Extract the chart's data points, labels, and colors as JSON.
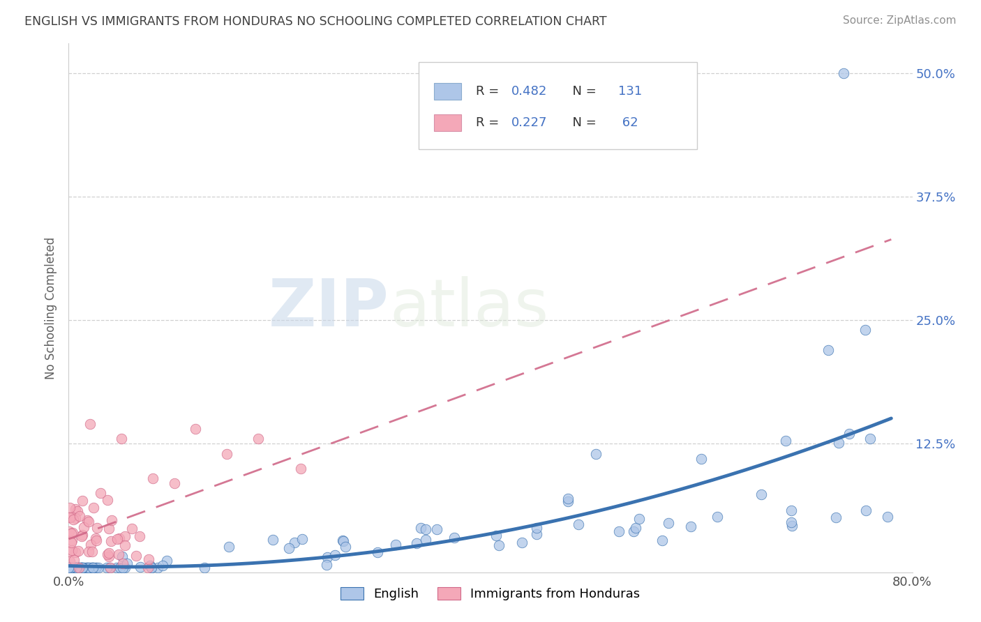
{
  "title": "ENGLISH VS IMMIGRANTS FROM HONDURAS NO SCHOOLING COMPLETED CORRELATION CHART",
  "source_text": "Source: ZipAtlas.com",
  "ylabel": "No Schooling Completed",
  "xmin": 0.0,
  "xmax": 0.8,
  "ymin": -0.005,
  "ymax": 0.53,
  "blue_color": "#aec6e8",
  "pink_color": "#f4a8b8",
  "blue_line_color": "#3a72b0",
  "pink_line_color": "#d06888",
  "legend_blue_label": "English",
  "legend_pink_label": "Immigrants from Honduras",
  "R_blue": 0.482,
  "N_blue": 131,
  "R_pink": 0.227,
  "N_pink": 62,
  "background_color": "#ffffff",
  "grid_color": "#d0d0d0",
  "title_color": "#404040",
  "right_tick_color": "#4472c4"
}
